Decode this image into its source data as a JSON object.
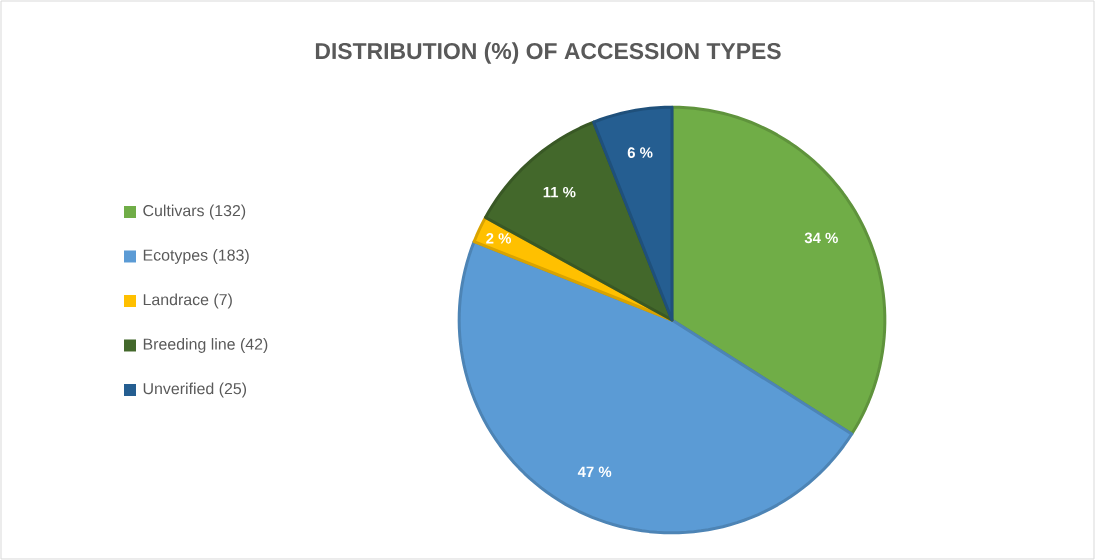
{
  "chart_data": {
    "type": "pie",
    "title": "DISTRIBUTION (%) OF ACCESSION TYPES",
    "categories": [
      "Cultivars (132)",
      "Ecotypes (183)",
      "Landrace (7)",
      "Breeding line (42)",
      "Unverified (25)"
    ],
    "values": [
      34,
      47,
      2,
      11,
      6
    ],
    "value_labels": [
      "34 %",
      "47 %",
      "2 %",
      "11 %",
      "6 %"
    ],
    "colors": [
      "#70ad47",
      "#5b9bd5",
      "#ffc000",
      "#43682b",
      "#255e91"
    ],
    "legend": "left"
  }
}
